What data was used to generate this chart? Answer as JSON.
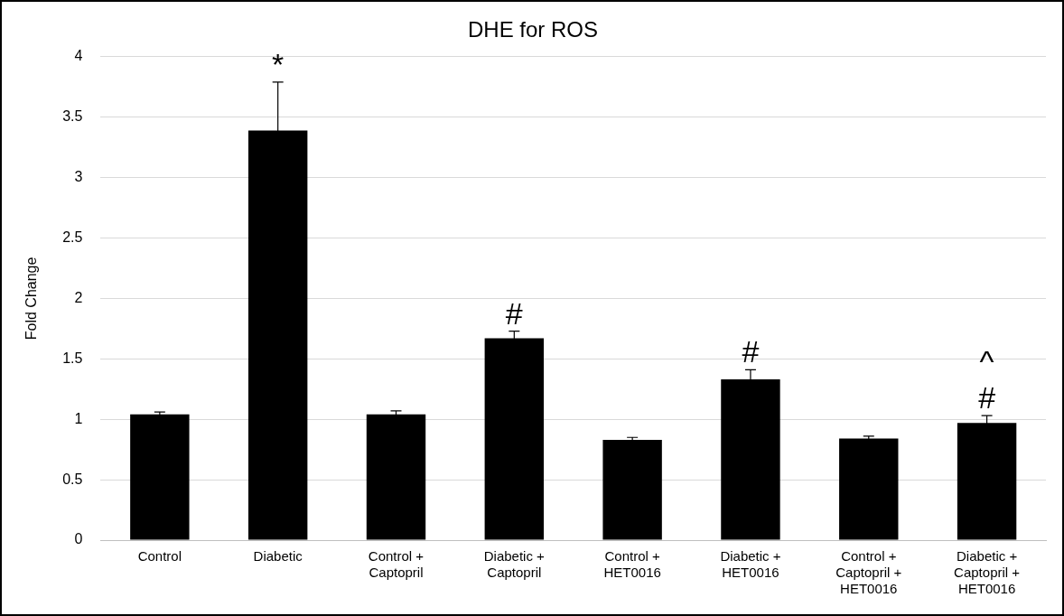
{
  "chart_data": {
    "type": "bar",
    "title": "DHE for ROS",
    "ylabel": "Fold Change",
    "categories": [
      "Control",
      "Diabetic",
      "Control + Captopril",
      "Diabetic + Captopril",
      "Control + HET0016",
      "Diabetic + HET0016",
      "Control + Captopril + HET0016",
      "Diabetic + Captopril + HET0016"
    ],
    "values": [
      1.04,
      3.39,
      1.04,
      1.67,
      0.83,
      1.33,
      0.84,
      0.97
    ],
    "errors": [
      0.02,
      0.4,
      0.03,
      0.06,
      0.02,
      0.08,
      0.02,
      0.06
    ],
    "color": "#000000",
    "ylim": [
      0,
      4
    ],
    "yticks": [
      0,
      0.5,
      1,
      1.5,
      2,
      2.5,
      3,
      3.5,
      4
    ],
    "grid": "y",
    "legend": false,
    "value_labels": [
      null,
      "*",
      null,
      "#",
      null,
      "#",
      null,
      "^\n#"
    ]
  }
}
